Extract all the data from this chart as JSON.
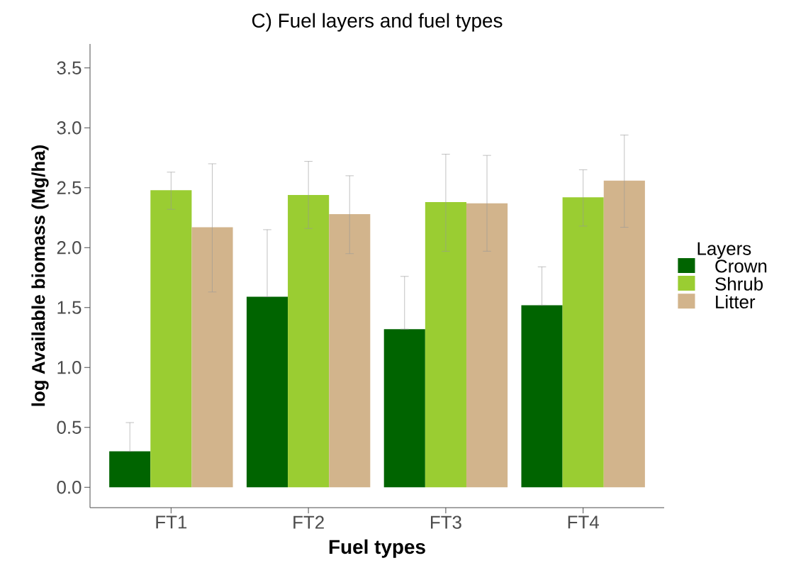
{
  "chart_data": {
    "type": "bar",
    "title": "C) Fuel layers and fuel types",
    "xlabel": "Fuel types",
    "ylabel": "log Available biomass (Mg/ha)",
    "legend_title": "Layers",
    "categories": [
      "FT1",
      "FT2",
      "FT3",
      "FT4"
    ],
    "series": [
      {
        "name": "Crown",
        "color": "#006400",
        "values": [
          0.3,
          1.59,
          1.32,
          1.52
        ],
        "errors": [
          [
            0.3,
            0.54
          ],
          [
            1.59,
            2.15
          ],
          [
            1.32,
            1.76
          ],
          [
            1.52,
            1.84
          ]
        ]
      },
      {
        "name": "Shrub",
        "color": "#9acd32",
        "values": [
          2.48,
          2.44,
          2.38,
          2.42
        ],
        "errors": [
          [
            2.32,
            2.63
          ],
          [
            2.16,
            2.72
          ],
          [
            1.97,
            2.78
          ],
          [
            2.18,
            2.65
          ]
        ]
      },
      {
        "name": "Litter",
        "color": "#d2b48c",
        "values": [
          2.17,
          2.28,
          2.37,
          2.56
        ],
        "errors": [
          [
            1.63,
            2.7
          ],
          [
            1.95,
            2.6
          ],
          [
            1.97,
            2.77
          ],
          [
            2.17,
            2.94
          ]
        ]
      }
    ],
    "ylim": [
      -0.17,
      3.7
    ],
    "yticks": [
      {
        "value": 0,
        "label": "0.0"
      },
      {
        "value": 0.5,
        "label": "0.5"
      },
      {
        "value": 1,
        "label": "1.0"
      },
      {
        "value": 1.5,
        "label": "1.5"
      },
      {
        "value": 2,
        "label": "2.0"
      },
      {
        "value": 2.5,
        "label": "2.5"
      },
      {
        "value": 3,
        "label": "3.0"
      },
      {
        "value": 3.5,
        "label": "3.5"
      }
    ],
    "grid": false,
    "legend": "right"
  }
}
